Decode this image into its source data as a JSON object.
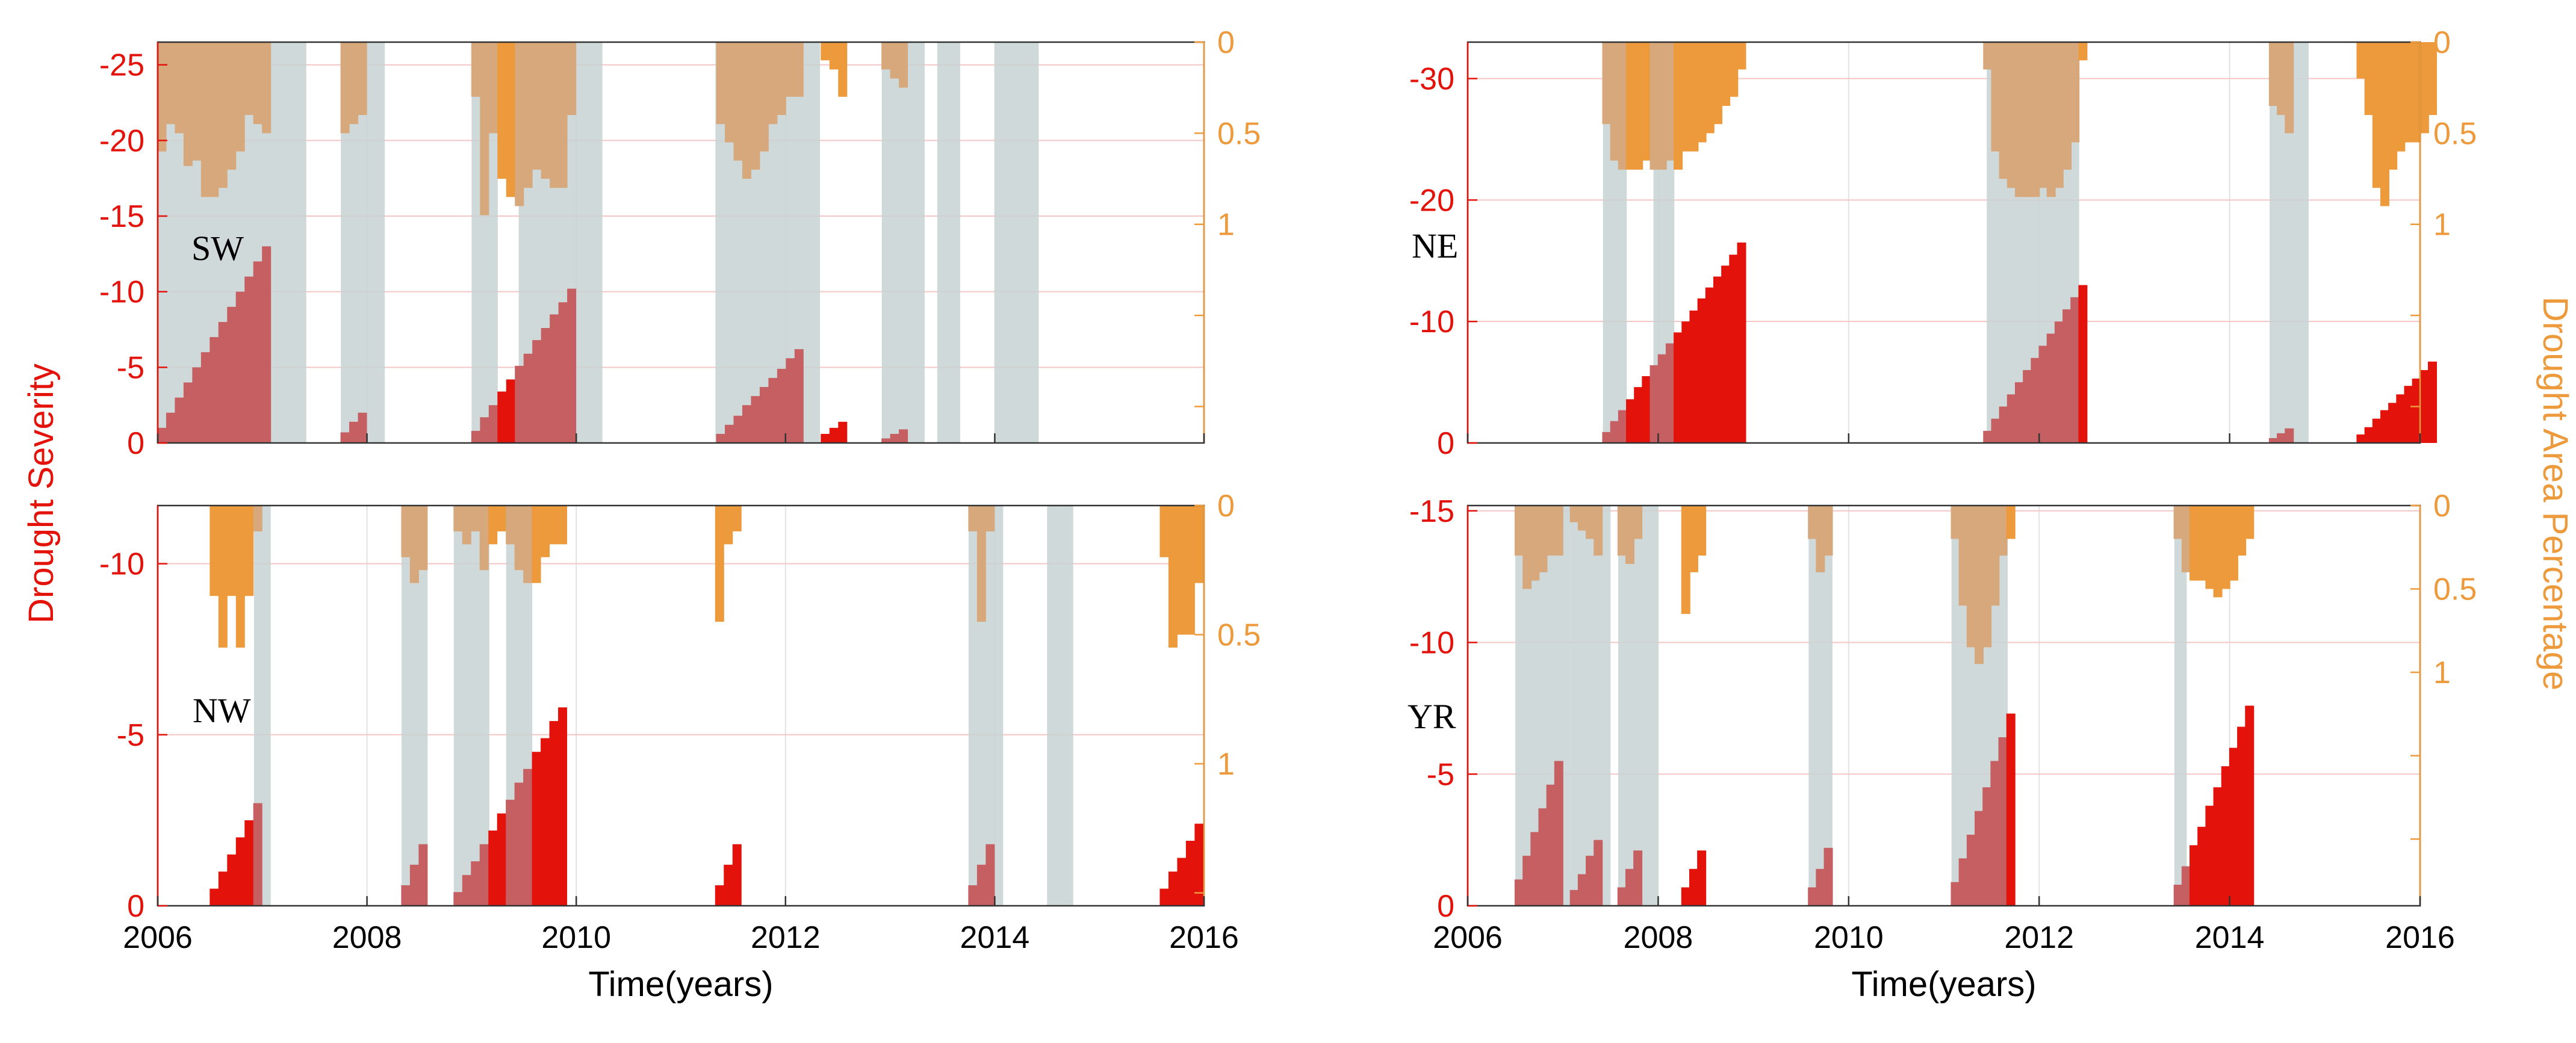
{
  "figure": {
    "ylabel_left": "Drought Severity",
    "ylabel_right": "Drought Area Percentage",
    "xlabel": "Time(years)"
  },
  "colors": {
    "severity": "#e3120b",
    "severity_shaded": "#c55f62",
    "area": "#ed9a3c",
    "area_shaded": "#d6a87c",
    "duration_band": "#c8d2d2",
    "grid": "#e2e2e2",
    "grid_red": "#f4c6c6",
    "axis": "#333333"
  },
  "chart_data": [
    {
      "type": "bar",
      "region": "SW",
      "xlabel": "",
      "xlim": [
        2006,
        2016
      ],
      "xticks": [
        "2006",
        "2008",
        "2010",
        "2012",
        "2014",
        "2016"
      ],
      "ylabel_left": "",
      "ylim_left": [
        0,
        -26.5
      ],
      "yticks_left": [
        "0",
        "-5",
        "-10",
        "-15",
        "-20",
        "-25"
      ],
      "ylim_right": [
        0,
        2.2
      ],
      "yticks_right": [
        "0",
        "0.5",
        "1"
      ],
      "duration_bands": [
        [
          2006.0,
          2007.42
        ],
        [
          2007.75,
          2008.17
        ],
        [
          2009.0,
          2009.25
        ],
        [
          2009.45,
          2010.25
        ],
        [
          2011.33,
          2012.33
        ],
        [
          2012.92,
          2013.33
        ],
        [
          2013.45,
          2013.67
        ],
        [
          2014.0,
          2014.42
        ]
      ],
      "severity_runs": [
        {
          "start": 2006.04,
          "step": 0.0833,
          "values": [
            -1,
            -2,
            -3,
            -4,
            -5,
            -6,
            -7,
            -8,
            -9,
            -10,
            -11,
            -12,
            -13
          ]
        },
        {
          "start": 2007.79,
          "step": 0.0833,
          "values": [
            -0.7,
            -1.4,
            -2.0
          ]
        },
        {
          "start": 2009.04,
          "step": 0.0833,
          "values": [
            -0.8,
            -1.7,
            -2.5,
            -3.4,
            -4.2,
            -5.1,
            -5.9,
            -6.8,
            -7.6,
            -8.5,
            -9.3,
            -10.2
          ]
        },
        {
          "start": 2011.38,
          "step": 0.0833,
          "values": [
            -0.6,
            -1.2,
            -1.8,
            -2.5,
            -3.1,
            -3.7,
            -4.3,
            -4.9,
            -5.6,
            -6.2
          ]
        },
        {
          "start": 2012.38,
          "step": 0.0833,
          "values": [
            -0.6,
            -1.0,
            -1.4
          ]
        },
        {
          "start": 2012.96,
          "step": 0.0833,
          "values": [
            -0.3,
            -0.6,
            -0.9
          ]
        }
      ],
      "area_runs": [
        {
          "start": 2006.04,
          "step": 0.0833,
          "values": [
            0.6,
            0.45,
            0.5,
            0.68,
            0.65,
            0.85,
            0.85,
            0.8,
            0.7,
            0.6,
            0.4,
            0.45,
            0.5
          ]
        },
        {
          "start": 2007.79,
          "step": 0.0833,
          "values": [
            0.5,
            0.45,
            0.4
          ]
        },
        {
          "start": 2009.04,
          "step": 0.0833,
          "values": [
            0.3,
            0.95,
            0.5,
            0.75,
            0.85,
            0.9,
            0.8,
            0.7,
            0.75,
            0.8,
            0.8,
            0.4
          ]
        },
        {
          "start": 2011.38,
          "step": 0.0833,
          "values": [
            0.45,
            0.55,
            0.65,
            0.75,
            0.7,
            0.6,
            0.45,
            0.4,
            0.3,
            0.3
          ]
        },
        {
          "start": 2012.38,
          "step": 0.0833,
          "values": [
            0.1,
            0.15,
            0.3
          ]
        },
        {
          "start": 2012.96,
          "step": 0.0833,
          "values": [
            0.15,
            0.2,
            0.25
          ]
        }
      ]
    },
    {
      "type": "bar",
      "region": "NE",
      "xlabel": "",
      "xlim": [
        2006,
        2016
      ],
      "xticks": [
        "2006",
        "2008",
        "2010",
        "2012",
        "2014",
        "2016"
      ],
      "ylabel_left": "",
      "ylim_left": [
        0,
        -33
      ],
      "yticks_left": [
        "0",
        "-10",
        "-20",
        "-30"
      ],
      "ylim_right": [
        0,
        2.2
      ],
      "yticks_right": [
        "0",
        "0.5",
        "1"
      ],
      "duration_bands": [
        [
          2007.42,
          2007.67
        ],
        [
          2007.95,
          2008.17
        ],
        [
          2011.45,
          2012.42
        ],
        [
          2014.42,
          2014.83
        ]
      ],
      "severity_runs": [
        {
          "start": 2007.46,
          "step": 0.0833,
          "values": [
            -0.9,
            -1.8,
            -2.7,
            -3.6,
            -4.6,
            -5.5,
            -6.4,
            -7.3,
            -8.2,
            -9.1,
            -10.0,
            -10.9,
            -11.9,
            -12.8,
            -13.7,
            -14.6,
            -15.5,
            -16.5
          ]
        },
        {
          "start": 2011.46,
          "step": 0.0833,
          "values": [
            -1.0,
            -2.0,
            -3.0,
            -4.0,
            -5.0,
            -6.0,
            -7.0,
            -8.0,
            -9.0,
            -10.0,
            -11.0,
            -12.0,
            -13.0
          ]
        },
        {
          "start": 2014.46,
          "step": 0.0833,
          "values": [
            -0.4,
            -0.8,
            -1.2
          ]
        },
        {
          "start": 2015.38,
          "step": 0.0833,
          "values": [
            -0.7,
            -1.3,
            -2.0,
            -2.7,
            -3.3,
            -4.0,
            -4.7,
            -5.3,
            -6.0,
            -6.7
          ]
        }
      ],
      "area_runs": [
        {
          "start": 2007.46,
          "step": 0.0833,
          "values": [
            0.45,
            0.65,
            0.7,
            0.7,
            0.7,
            0.65,
            0.7,
            0.7,
            0.65,
            0.7,
            0.6,
            0.6,
            0.55,
            0.5,
            0.45,
            0.35,
            0.3,
            0.15
          ]
        },
        {
          "start": 2011.46,
          "step": 0.0833,
          "values": [
            0.15,
            0.6,
            0.75,
            0.8,
            0.85,
            0.85,
            0.85,
            0.8,
            0.85,
            0.8,
            0.7,
            0.55,
            0.1
          ]
        },
        {
          "start": 2014.46,
          "step": 0.0833,
          "values": [
            0.35,
            0.4,
            0.5
          ]
        },
        {
          "start": 2015.38,
          "step": 0.0833,
          "values": [
            0.2,
            0.4,
            0.8,
            0.9,
            0.7,
            0.6,
            0.55,
            0.55,
            0.5,
            0.4
          ]
        }
      ]
    },
    {
      "type": "bar",
      "region": "NW",
      "xlabel": "Time(years)",
      "xlim": [
        2006,
        2016
      ],
      "xticks": [
        "2006",
        "2008",
        "2010",
        "2012",
        "2014",
        "2016"
      ],
      "ylabel_left": "",
      "ylim_left": [
        0,
        -11.7
      ],
      "yticks_left": [
        "0",
        "-5",
        "-10"
      ],
      "ylim_right": [
        0,
        1.55
      ],
      "yticks_right": [
        "0",
        "0.5",
        "1"
      ],
      "duration_bands": [
        [
          2006.92,
          2007.08
        ],
        [
          2008.33,
          2008.58
        ],
        [
          2008.83,
          2009.17
        ],
        [
          2009.33,
          2009.58
        ],
        [
          2013.75,
          2014.08
        ],
        [
          2014.5,
          2014.75
        ]
      ],
      "severity_runs": [
        {
          "start": 2006.54,
          "step": 0.0833,
          "values": [
            -0.5,
            -1.0,
            -1.5,
            -2.0,
            -2.5,
            -3.0
          ]
        },
        {
          "start": 2008.37,
          "step": 0.0833,
          "values": [
            -0.6,
            -1.2,
            -1.8
          ]
        },
        {
          "start": 2008.87,
          "step": 0.0833,
          "values": [
            -0.4,
            -0.9,
            -1.3,
            -1.8,
            -2.2,
            -2.7,
            -3.1,
            -3.6,
            -4.0,
            -4.5,
            -4.9,
            -5.4,
            -5.8
          ]
        },
        {
          "start": 2011.37,
          "step": 0.0833,
          "values": [
            -0.6,
            -1.2,
            -1.8
          ]
        },
        {
          "start": 2013.79,
          "step": 0.0833,
          "values": [
            -0.6,
            -1.2,
            -1.8
          ]
        },
        {
          "start": 2015.62,
          "step": 0.0833,
          "values": [
            -0.5,
            -1.0,
            -1.4,
            -1.9,
            -2.4
          ]
        }
      ],
      "area_runs": [
        {
          "start": 2006.54,
          "step": 0.0833,
          "values": [
            0.35,
            0.55,
            0.35,
            0.55,
            0.35,
            0.1
          ]
        },
        {
          "start": 2008.37,
          "step": 0.0833,
          "values": [
            0.2,
            0.3,
            0.25
          ]
        },
        {
          "start": 2008.87,
          "step": 0.0833,
          "values": [
            0.1,
            0.15,
            0.1,
            0.25,
            0.15,
            0.1,
            0.15,
            0.25,
            0.3,
            0.3,
            0.2,
            0.15,
            0.15
          ]
        },
        {
          "start": 2011.37,
          "step": 0.0833,
          "values": [
            0.45,
            0.15,
            0.1
          ]
        },
        {
          "start": 2013.79,
          "step": 0.0833,
          "values": [
            0.1,
            0.45,
            0.1
          ]
        },
        {
          "start": 2015.62,
          "step": 0.0833,
          "values": [
            0.2,
            0.55,
            0.5,
            0.5,
            0.3
          ]
        }
      ]
    },
    {
      "type": "bar",
      "region": "YR",
      "xlabel": "Time(years)",
      "xlim": [
        2006,
        2016
      ],
      "xticks": [
        "2006",
        "2008",
        "2010",
        "2012",
        "2014",
        "2016"
      ],
      "ylabel_left": "",
      "ylim_left": [
        0,
        -15.2
      ],
      "yticks_left": [
        "0",
        "-5",
        "-10",
        "-15"
      ],
      "ylim_right": [
        0,
        2.4
      ],
      "yticks_right": [
        "0",
        "0.5",
        "1"
      ],
      "duration_bands": [
        [
          2006.5,
          2007.08
        ],
        [
          2007.08,
          2007.5
        ],
        [
          2007.58,
          2008.0
        ],
        [
          2009.58,
          2009.83
        ],
        [
          2011.08,
          2011.67
        ],
        [
          2013.42,
          2013.55
        ]
      ],
      "severity_runs": [
        {
          "start": 2006.54,
          "step": 0.0833,
          "values": [
            -1.0,
            -1.9,
            -2.8,
            -3.7,
            -4.6,
            -5.5
          ]
        },
        {
          "start": 2007.12,
          "step": 0.0833,
          "values": [
            -0.6,
            -1.2,
            -1.9,
            -2.5
          ]
        },
        {
          "start": 2007.62,
          "step": 0.0833,
          "values": [
            -0.7,
            -1.4,
            -2.1
          ]
        },
        {
          "start": 2008.29,
          "step": 0.0833,
          "values": [
            -0.7,
            -1.4,
            -2.1
          ]
        },
        {
          "start": 2009.62,
          "step": 0.0833,
          "values": [
            -0.7,
            -1.4,
            -2.2
          ]
        },
        {
          "start": 2011.12,
          "step": 0.0833,
          "values": [
            -0.9,
            -1.8,
            -2.7,
            -3.6,
            -4.5,
            -5.5,
            -6.4,
            -7.3
          ]
        },
        {
          "start": 2013.46,
          "step": 0.0833,
          "values": [
            -0.8,
            -1.5,
            -2.3,
            -3.0,
            -3.8,
            -4.5,
            -5.3,
            -6.0,
            -6.8,
            -7.6
          ]
        }
      ],
      "area_runs": [
        {
          "start": 2006.54,
          "step": 0.0833,
          "values": [
            0.3,
            0.5,
            0.45,
            0.4,
            0.3,
            0.3
          ]
        },
        {
          "start": 2007.12,
          "step": 0.0833,
          "values": [
            0.1,
            0.15,
            0.2,
            0.3
          ]
        },
        {
          "start": 2007.62,
          "step": 0.0833,
          "values": [
            0.3,
            0.35,
            0.2
          ]
        },
        {
          "start": 2008.29,
          "step": 0.0833,
          "values": [
            0.65,
            0.4,
            0.3
          ]
        },
        {
          "start": 2009.62,
          "step": 0.0833,
          "values": [
            0.2,
            0.4,
            0.3
          ]
        },
        {
          "start": 2011.12,
          "step": 0.0833,
          "values": [
            0.2,
            0.6,
            0.85,
            0.95,
            0.85,
            0.6,
            0.3,
            0.2
          ]
        },
        {
          "start": 2013.46,
          "step": 0.0833,
          "values": [
            0.2,
            0.4,
            0.45,
            0.45,
            0.5,
            0.55,
            0.5,
            0.45,
            0.3,
            0.2
          ]
        }
      ]
    }
  ]
}
